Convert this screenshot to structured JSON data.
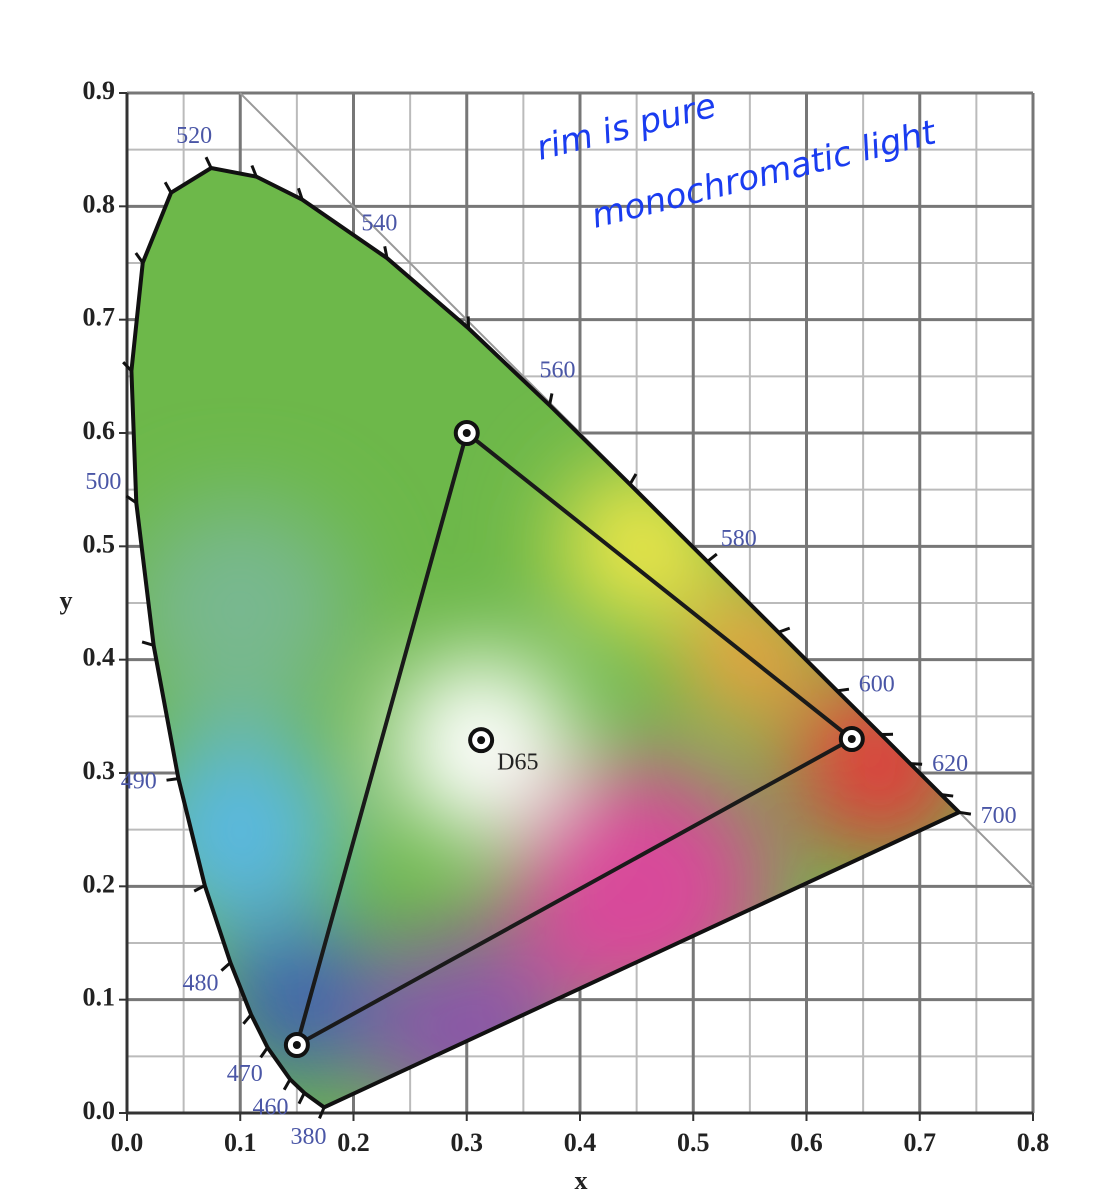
{
  "chart_data": {
    "type": "chromaticity",
    "xlabel": "x",
    "ylabel": "y",
    "xlim": [
      0,
      0.8
    ],
    "ylim": [
      0,
      0.9
    ],
    "xticks": [
      {
        "value": 0,
        "label": "0.0"
      },
      0.1,
      0.2,
      0.3,
      0.4,
      0.5,
      0.6,
      0.7,
      0.8
    ],
    "yticks": [
      {
        "value": 0,
        "label": "0.0"
      },
      0.1,
      0.2,
      0.3,
      0.4,
      0.5,
      0.6,
      0.7,
      0.8,
      0.9
    ],
    "xminorticks": [
      0.05,
      0.15,
      0.25,
      0.35,
      0.45,
      0.55,
      0.65,
      0.75
    ],
    "yminorticks": [
      0.05,
      0.15,
      0.25,
      0.35,
      0.45,
      0.55,
      0.65,
      0.75,
      0.85
    ],
    "grid": true,
    "locus": {
      "color": "#111111",
      "label_color": "#4a56a6",
      "labels": [
        380,
        null,
        460,
        470,
        null,
        480,
        null,
        490,
        null,
        500,
        null,
        null,
        null,
        520,
        null,
        null,
        540,
        null,
        560,
        null,
        580,
        null,
        600,
        null,
        620,
        null,
        700
      ],
      "x": [
        0.1741,
        0.1566,
        0.144,
        0.1241,
        0.1096,
        0.0913,
        0.0687,
        0.0454,
        0.0235,
        0.0082,
        0.0039,
        0.0139,
        0.0389,
        0.0743,
        0.1142,
        0.1547,
        0.2296,
        0.3016,
        0.3731,
        0.4441,
        0.5125,
        0.5752,
        0.627,
        0.6658,
        0.6915,
        0.719,
        0.7347
      ],
      "y": [
        0.005,
        0.0177,
        0.0297,
        0.0578,
        0.0868,
        0.1327,
        0.2007,
        0.295,
        0.4127,
        0.5384,
        0.6548,
        0.7502,
        0.812,
        0.8338,
        0.8262,
        0.8059,
        0.7543,
        0.6923,
        0.6245,
        0.5547,
        0.4866,
        0.4242,
        0.3725,
        0.334,
        0.3083,
        0.2809,
        0.2653
      ]
    },
    "gamut": {
      "color": "#1a1a1a",
      "x": [
        0.64,
        0.3,
        0.15
      ],
      "y": [
        0.33,
        0.6,
        0.06
      ]
    },
    "white_point": {
      "name": "D65",
      "x": 0.3127,
      "y": 0.329
    },
    "annotation": [
      "rim is pure",
      "monochromatic light"
    ],
    "annotation_color": "#1a3cf0"
  }
}
